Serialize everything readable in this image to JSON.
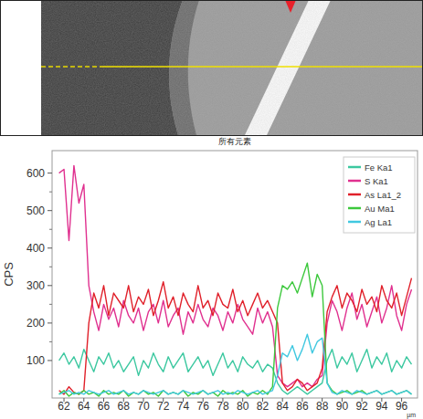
{
  "chart_data": {
    "type": "line",
    "title": "所有元素",
    "x_label": "µm",
    "y_label": "CPS",
    "x": [
      61.5,
      62,
      62.5,
      63,
      63.5,
      64,
      64.5,
      65,
      65.5,
      66,
      66.5,
      67,
      67.5,
      68,
      68.5,
      69,
      69.5,
      70,
      70.5,
      71,
      71.5,
      72,
      72.5,
      73,
      73.5,
      74,
      74.5,
      75,
      75.5,
      76,
      76.5,
      77,
      77.5,
      78,
      78.5,
      79,
      79.5,
      80,
      80.5,
      81,
      81.5,
      82,
      82.5,
      83,
      83.5,
      84,
      84.5,
      85,
      85.5,
      86,
      86.5,
      87,
      87.5,
      88,
      88.5,
      89,
      89.5,
      90,
      90.5,
      91,
      91.5,
      92,
      92.5,
      93,
      93.5,
      94,
      94.5,
      95,
      95.5,
      96,
      96.5,
      97
    ],
    "series": [
      {
        "name": "Fe Ka1",
        "color": "#3cc8a0",
        "values": [
          100,
          120,
          90,
          110,
          80,
          130,
          100,
          70,
          110,
          90,
          120,
          80,
          100,
          70,
          90,
          110,
          60,
          100,
          80,
          120,
          90,
          70,
          110,
          80,
          100,
          120,
          70,
          90,
          110,
          80,
          100,
          60,
          90,
          120,
          80,
          100,
          70,
          110,
          90,
          80,
          100,
          70,
          90,
          80,
          40,
          20,
          10,
          20,
          30,
          20,
          10,
          20,
          30,
          40,
          100,
          130,
          80,
          110,
          90,
          120,
          70,
          100,
          130,
          80,
          110,
          90,
          120,
          70,
          100,
          80,
          110,
          90
        ]
      },
      {
        "name": "S Ka1",
        "color": "#e0308f",
        "values": [
          600,
          610,
          420,
          620,
          520,
          570,
          300,
          230,
          180,
          250,
          210,
          240,
          190,
          260,
          220,
          200,
          240,
          180,
          230,
          250,
          200,
          260,
          190,
          220,
          240,
          170,
          230,
          200,
          250,
          210,
          190,
          240,
          220,
          180,
          230,
          200,
          250,
          210,
          190,
          170,
          240,
          200,
          230,
          190,
          60,
          40,
          30,
          40,
          50,
          30,
          40,
          30,
          50,
          60,
          200,
          260,
          230,
          180,
          240,
          280,
          210,
          250,
          190,
          230,
          270,
          200,
          240,
          300,
          220,
          180,
          250,
          290
        ]
      },
      {
        "name": "As La1_2",
        "color": "#e0202a",
        "values": [
          20,
          10,
          30,
          15,
          10,
          20,
          200,
          280,
          240,
          300,
          220,
          280,
          260,
          240,
          300,
          230,
          270,
          250,
          290,
          220,
          260,
          310,
          240,
          270,
          220,
          280,
          250,
          230,
          300,
          240,
          260,
          220,
          280,
          250,
          240,
          290,
          230,
          260,
          220,
          250,
          280,
          240,
          260,
          230,
          200,
          40,
          20,
          30,
          50,
          40,
          20,
          30,
          40,
          80,
          230,
          270,
          300,
          240,
          280,
          260,
          230,
          290,
          250,
          270,
          230,
          300,
          260,
          240,
          280,
          220,
          270,
          320
        ]
      },
      {
        "name": "Au Ma1",
        "color": "#3cc83c",
        "values": [
          10,
          20,
          5,
          15,
          10,
          20,
          10,
          15,
          5,
          20,
          10,
          15,
          10,
          20,
          5,
          15,
          10,
          20,
          10,
          15,
          5,
          20,
          10,
          15,
          10,
          20,
          5,
          15,
          10,
          20,
          10,
          15,
          5,
          20,
          10,
          15,
          10,
          20,
          5,
          15,
          10,
          20,
          10,
          30,
          240,
          300,
          290,
          310,
          280,
          320,
          360,
          270,
          330,
          300,
          40,
          20,
          10,
          15,
          20,
          10,
          15,
          20,
          10,
          15,
          20,
          10,
          15,
          20,
          10,
          15,
          20,
          10
        ]
      },
      {
        "name": "Ag La1",
        "color": "#40c8e0",
        "values": [
          10,
          15,
          20,
          10,
          15,
          10,
          20,
          15,
          10,
          15,
          20,
          10,
          15,
          20,
          10,
          15,
          10,
          20,
          15,
          10,
          15,
          20,
          10,
          15,
          10,
          20,
          15,
          10,
          15,
          20,
          10,
          15,
          20,
          10,
          15,
          10,
          20,
          15,
          10,
          15,
          20,
          10,
          15,
          20,
          60,
          120,
          110,
          140,
          100,
          130,
          170,
          120,
          150,
          160,
          40,
          15,
          10,
          20,
          15,
          10,
          20,
          15,
          10,
          15,
          20,
          10,
          15,
          20,
          10,
          15,
          20,
          10
        ]
      }
    ],
    "xlim": [
      60.8,
      97.6
    ],
    "ylim": [
      0,
      660
    ],
    "xticks": [
      62,
      64,
      66,
      68,
      70,
      72,
      74,
      76,
      78,
      80,
      82,
      84,
      86,
      88,
      90,
      92,
      94,
      96
    ],
    "yticks": [
      100,
      200,
      300,
      400,
      500,
      600
    ],
    "grid": false,
    "legend": "top-right"
  }
}
